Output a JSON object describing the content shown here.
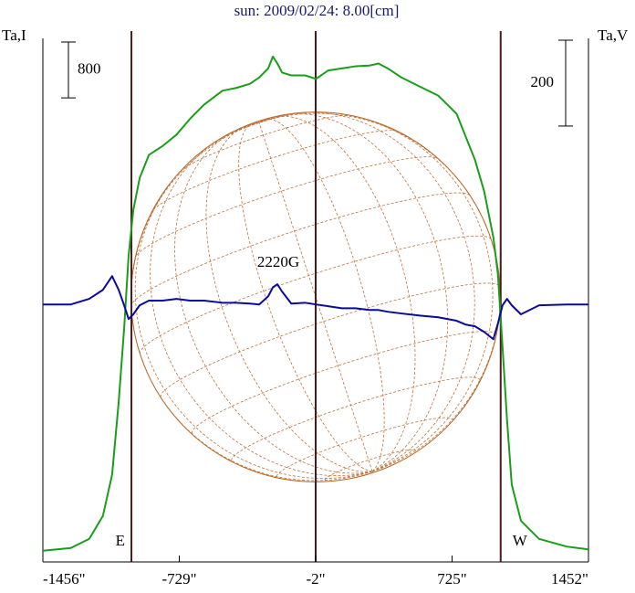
{
  "chart_data": {
    "type": "line",
    "title": "sun: 2009/02/24: 8.00[cm]",
    "y_label": "Ta,I",
    "y2_label": "Ta,V",
    "annotation": "2220G",
    "limb_labels": [
      "E",
      "W"
    ],
    "vlines": [
      -984,
      -2,
      984
    ],
    "yscale": 800,
    "y2scale": 200,
    "x": [
      -1456,
      -1307,
      -1209,
      -1136,
      -1087,
      -1052,
      -1023,
      -999,
      -974,
      -940,
      -891,
      -817,
      -744,
      -671,
      -597,
      -499,
      -426,
      -352,
      -303,
      -255,
      -230,
      -206,
      -181,
      -132,
      -59,
      0,
      64,
      137,
      210,
      284,
      333,
      382,
      455,
      553,
      651,
      700,
      749,
      798,
      847,
      896,
      945,
      969,
      994,
      1018,
      1043,
      1092,
      1189,
      1336,
      1452
    ],
    "xlim": [
      -1456,
      1452
    ],
    "xticks": [
      {
        "value": -1456,
        "label": "-1456\""
      },
      {
        "value": -729,
        "label": "-729\""
      },
      {
        "value": -2,
        "label": "-2\""
      },
      {
        "value": 725,
        "label": "725\""
      },
      {
        "value": 1452,
        "label": "1452\""
      }
    ],
    "ylim": [
      0,
      7500
    ],
    "y2lim": [
      -600,
      620
    ],
    "series": [
      {
        "name": "I",
        "color": "#1a9e1a",
        "values": [
          160,
          200,
          330,
          660,
          1250,
          2290,
          3340,
          4390,
          5040,
          5500,
          5830,
          5960,
          6120,
          6350,
          6550,
          6750,
          6790,
          6850,
          6940,
          7070,
          7240,
          7140,
          7010,
          6970,
          6970,
          6920,
          7040,
          7070,
          7100,
          7110,
          7140,
          7070,
          6940,
          6810,
          6680,
          6550,
          6420,
          6090,
          5760,
          5310,
          4650,
          4130,
          3080,
          2030,
          1110,
          590,
          330,
          220,
          180
        ]
      },
      {
        "name": "V",
        "color": "#0a0a9e",
        "axis": "y2",
        "values": [
          0,
          0,
          13,
          34,
          66,
          34,
          -2,
          -34,
          -23,
          -2,
          9,
          9,
          13,
          9,
          9,
          4,
          4,
          2,
          0,
          19,
          40,
          47,
          30,
          2,
          4,
          0,
          -4,
          -9,
          -9,
          -13,
          -13,
          -17,
          -21,
          -26,
          -30,
          -34,
          -38,
          -47,
          -51,
          -64,
          -81,
          -45,
          -2,
          13,
          -2,
          -23,
          -2,
          0,
          0
        ]
      }
    ]
  }
}
